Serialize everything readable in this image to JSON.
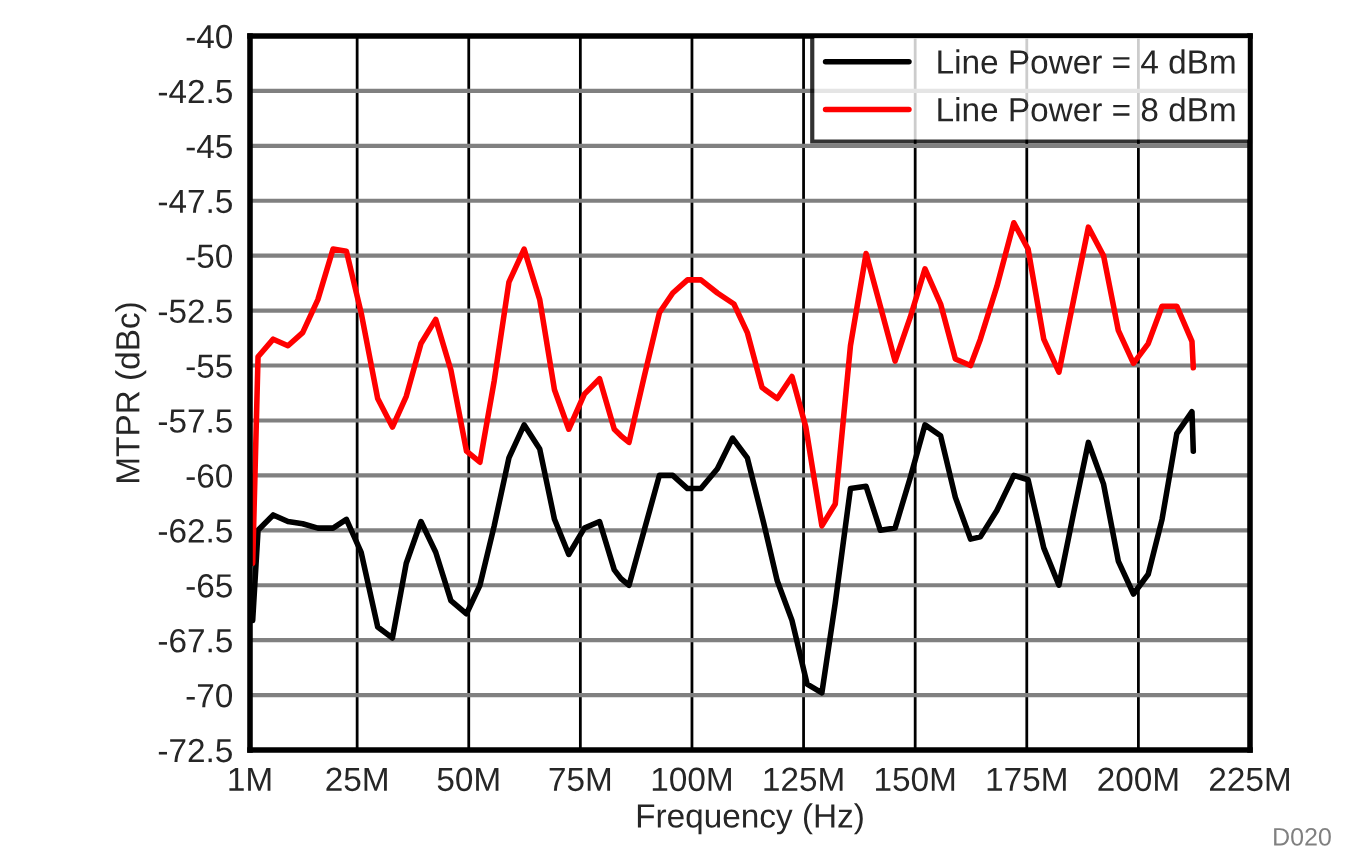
{
  "chart_data": {
    "type": "line",
    "xlabel": "Frequency (Hz)",
    "ylabel": "MTPR (dBc)",
    "xlim": [
      1,
      225
    ],
    "xticks": [
      {
        "value": 1,
        "label": "1M"
      },
      {
        "value": 25,
        "label": "25M"
      },
      {
        "value": 50,
        "label": "50M"
      },
      {
        "value": 75,
        "label": "75M"
      },
      {
        "value": 100,
        "label": "100M"
      },
      {
        "value": 125,
        "label": "125M"
      },
      {
        "value": 150,
        "label": "150M"
      },
      {
        "value": 175,
        "label": "175M"
      },
      {
        "value": 200,
        "label": "200M"
      },
      {
        "value": 225,
        "label": "225M"
      }
    ],
    "ylim": [
      -72.5,
      -40
    ],
    "yticks": [
      -72.5,
      -70,
      -67.5,
      -65,
      -62.5,
      -60,
      -57.5,
      -55,
      -52.5,
      -50,
      -47.5,
      -45,
      -42.5,
      -40
    ],
    "grid": true,
    "legend": "top right",
    "marker": "none",
    "line_style": "solid",
    "annotations": [
      "D020"
    ],
    "series": [
      {
        "name": "Line Power = 4 dBm",
        "color": "#000000",
        "x": [
          1.6,
          2.8,
          6.2,
          9.5,
          12.8,
          16.2,
          19.6,
          22.6,
          25.9,
          29.6,
          32.9,
          36.0,
          39.3,
          42.6,
          46.0,
          49.5,
          52.5,
          55.7,
          59.0,
          62.4,
          65.9,
          69.2,
          72.4,
          75.9,
          79.3,
          82.6,
          84.1,
          85.9,
          89.3,
          92.7,
          95.7,
          99.0,
          102.0,
          105.7,
          109.1,
          112.4,
          116.1,
          119.1,
          122.4,
          125.8,
          129.1,
          132.1,
          135.5,
          139.0,
          142.2,
          145.5,
          148.9,
          152.2,
          155.7,
          159.0,
          162.4,
          164.6,
          168.3,
          172.1,
          175.3,
          178.8,
          182.2,
          185.5,
          188.8,
          192.2,
          195.5,
          198.9,
          202.2,
          205.3,
          208.6,
          212.0,
          212.3
        ],
        "values": [
          -66.6,
          -62.5,
          -61.8,
          -62.1,
          -62.2,
          -62.4,
          -62.4,
          -62.0,
          -63.5,
          -66.9,
          -67.4,
          -64.0,
          -62.1,
          -63.5,
          -65.7,
          -66.3,
          -65.0,
          -62.3,
          -59.2,
          -57.7,
          -58.8,
          -62.0,
          -63.6,
          -62.4,
          -62.1,
          -64.3,
          -64.7,
          -65.0,
          -62.5,
          -60.0,
          -60.0,
          -60.6,
          -60.6,
          -59.7,
          -58.3,
          -59.2,
          -62.2,
          -64.8,
          -66.6,
          -69.5,
          -69.9,
          -65.8,
          -60.6,
          -60.5,
          -62.5,
          -62.4,
          -60.1,
          -57.7,
          -58.2,
          -61.0,
          -62.9,
          -62.8,
          -61.6,
          -60.0,
          -60.2,
          -63.3,
          -65.0,
          -61.7,
          -58.5,
          -60.4,
          -63.9,
          -65.4,
          -64.5,
          -62.0,
          -58.1,
          -57.1,
          -58.9
        ]
      },
      {
        "name": "Line Power = 8 dBm",
        "color": "#ff0000",
        "x": [
          1.6,
          2.8,
          6.2,
          9.5,
          12.8,
          16.2,
          19.6,
          22.6,
          25.9,
          29.6,
          32.9,
          36.0,
          39.3,
          42.6,
          46.0,
          49.5,
          52.5,
          55.7,
          59.0,
          62.4,
          65.9,
          69.2,
          72.4,
          75.9,
          79.3,
          82.6,
          84.1,
          85.9,
          89.3,
          92.7,
          95.7,
          99.0,
          102.0,
          105.7,
          109.4,
          112.4,
          115.7,
          119.1,
          122.4,
          125.5,
          129.1,
          132.1,
          135.5,
          139.0,
          142.2,
          145.5,
          148.9,
          152.2,
          155.7,
          159.0,
          162.4,
          164.6,
          168.3,
          172.1,
          175.3,
          178.8,
          182.2,
          185.5,
          188.8,
          192.2,
          195.5,
          198.9,
          202.2,
          205.3,
          208.6,
          212.0,
          212.3
        ],
        "values": [
          -64.0,
          -54.6,
          -53.8,
          -54.1,
          -53.5,
          -52.0,
          -49.7,
          -49.8,
          -52.6,
          -56.5,
          -57.8,
          -56.4,
          -54.0,
          -52.9,
          -55.2,
          -58.9,
          -59.4,
          -55.7,
          -51.2,
          -49.7,
          -52.0,
          -56.1,
          -57.9,
          -56.3,
          -55.6,
          -57.9,
          -58.2,
          -58.5,
          -55.5,
          -52.6,
          -51.7,
          -51.1,
          -51.1,
          -51.7,
          -52.2,
          -53.5,
          -56.0,
          -56.5,
          -55.5,
          -57.8,
          -62.3,
          -61.3,
          -54.1,
          -49.9,
          -52.3,
          -54.8,
          -52.8,
          -50.6,
          -52.2,
          -54.7,
          -55.0,
          -53.8,
          -51.4,
          -48.5,
          -49.7,
          -53.8,
          -55.3,
          -52.0,
          -48.7,
          -50.0,
          -53.4,
          -54.9,
          -54.0,
          -52.3,
          -52.3,
          -53.9,
          -55.1
        ]
      }
    ]
  }
}
